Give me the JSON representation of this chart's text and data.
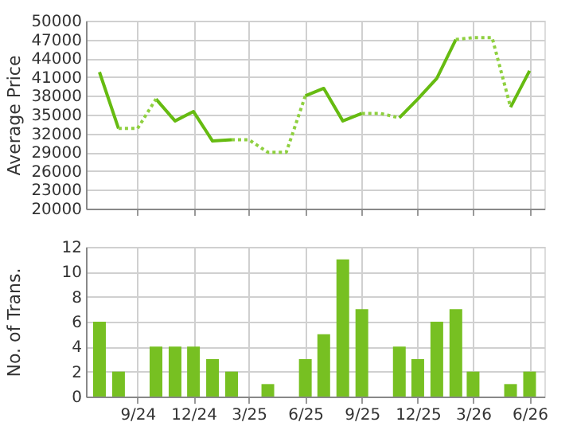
{
  "chart_data": [
    {
      "type": "line",
      "ylabel": "Average Price",
      "x": [
        "2024-07",
        "2024-08",
        "2024-09",
        "2024-10",
        "2024-11",
        "2024-12",
        "2025-01",
        "2025-02",
        "2025-03",
        "2025-04",
        "2025-05",
        "2025-06",
        "2025-07",
        "2025-08",
        "2025-09",
        "2025-10",
        "2025-11",
        "2025-12",
        "2026-01",
        "2026-02",
        "2026-03",
        "2026-04",
        "2026-05",
        "2026-06"
      ],
      "series": [
        {
          "color": "#66bb11",
          "line_style": "solid",
          "values": [
            41800,
            32800,
            null,
            37500,
            34000,
            35500,
            30800,
            31000,
            null,
            null,
            null,
            38000,
            39200,
            34000,
            35200,
            null,
            34500,
            37500,
            40800,
            47000,
            null,
            null,
            36200,
            42000
          ]
        },
        {
          "color": "#8fd040",
          "line_style": "dotted",
          "values": [
            null,
            32800,
            32800,
            37500,
            null,
            null,
            null,
            31000,
            31000,
            29000,
            29000,
            38000,
            null,
            null,
            35200,
            35200,
            34500,
            null,
            null,
            47000,
            47300,
            47300,
            36200,
            null
          ]
        }
      ],
      "xlim": [
        "2024-06-09",
        "2026-06-25"
      ],
      "xticks": [
        {
          "value": "2024-09",
          "label": null
        },
        {
          "value": "2024-12",
          "label": null
        },
        {
          "value": "2025-03",
          "label": null
        },
        {
          "value": "2025-06",
          "label": null
        },
        {
          "value": "2025-09",
          "label": null
        },
        {
          "value": "2025-12",
          "label": null
        },
        {
          "value": "2026-03",
          "label": null
        },
        {
          "value": "2026-06",
          "label": null
        }
      ],
      "ylim": [
        20000,
        50000
      ],
      "yticks": [
        20000,
        23000,
        26000,
        29000,
        32000,
        35000,
        38000,
        41000,
        44000,
        47000,
        50000
      ],
      "grid": true,
      "legend": false,
      "marker": "none",
      "tick_labels": "y"
    },
    {
      "type": "bar",
      "ylabel": "No. of Trans.",
      "x": [
        "2024-07",
        "2024-08",
        "2024-09",
        "2024-10",
        "2024-11",
        "2024-12",
        "2025-01",
        "2025-02",
        "2025-03",
        "2025-04",
        "2025-05",
        "2025-06",
        "2025-07",
        "2025-08",
        "2025-09",
        "2025-10",
        "2025-11",
        "2025-12",
        "2026-01",
        "2026-02",
        "2026-03",
        "2026-04",
        "2026-05",
        "2026-06"
      ],
      "values": [
        6,
        2,
        0,
        4,
        4,
        4,
        3,
        2,
        0,
        1,
        0,
        3,
        5,
        11,
        7,
        0,
        4,
        3,
        6,
        7,
        2,
        0,
        1,
        2
      ],
      "color": "#77c022",
      "xlim": [
        "2024-06-09",
        "2026-06-25"
      ],
      "xticks": [
        {
          "value": "2024-09",
          "label": "9/24"
        },
        {
          "value": "2024-12",
          "label": "12/24"
        },
        {
          "value": "2025-03",
          "label": "3/25"
        },
        {
          "value": "2025-06",
          "label": "6/25"
        },
        {
          "value": "2025-09",
          "label": "9/25"
        },
        {
          "value": "2025-12",
          "label": "12/25"
        },
        {
          "value": "2026-03",
          "label": "3/26"
        },
        {
          "value": "2026-06",
          "label": "6/26"
        }
      ],
      "ylim": [
        0,
        12
      ],
      "yticks": [
        0,
        2,
        4,
        6,
        8,
        10,
        12
      ],
      "grid": true,
      "legend": false
    }
  ]
}
